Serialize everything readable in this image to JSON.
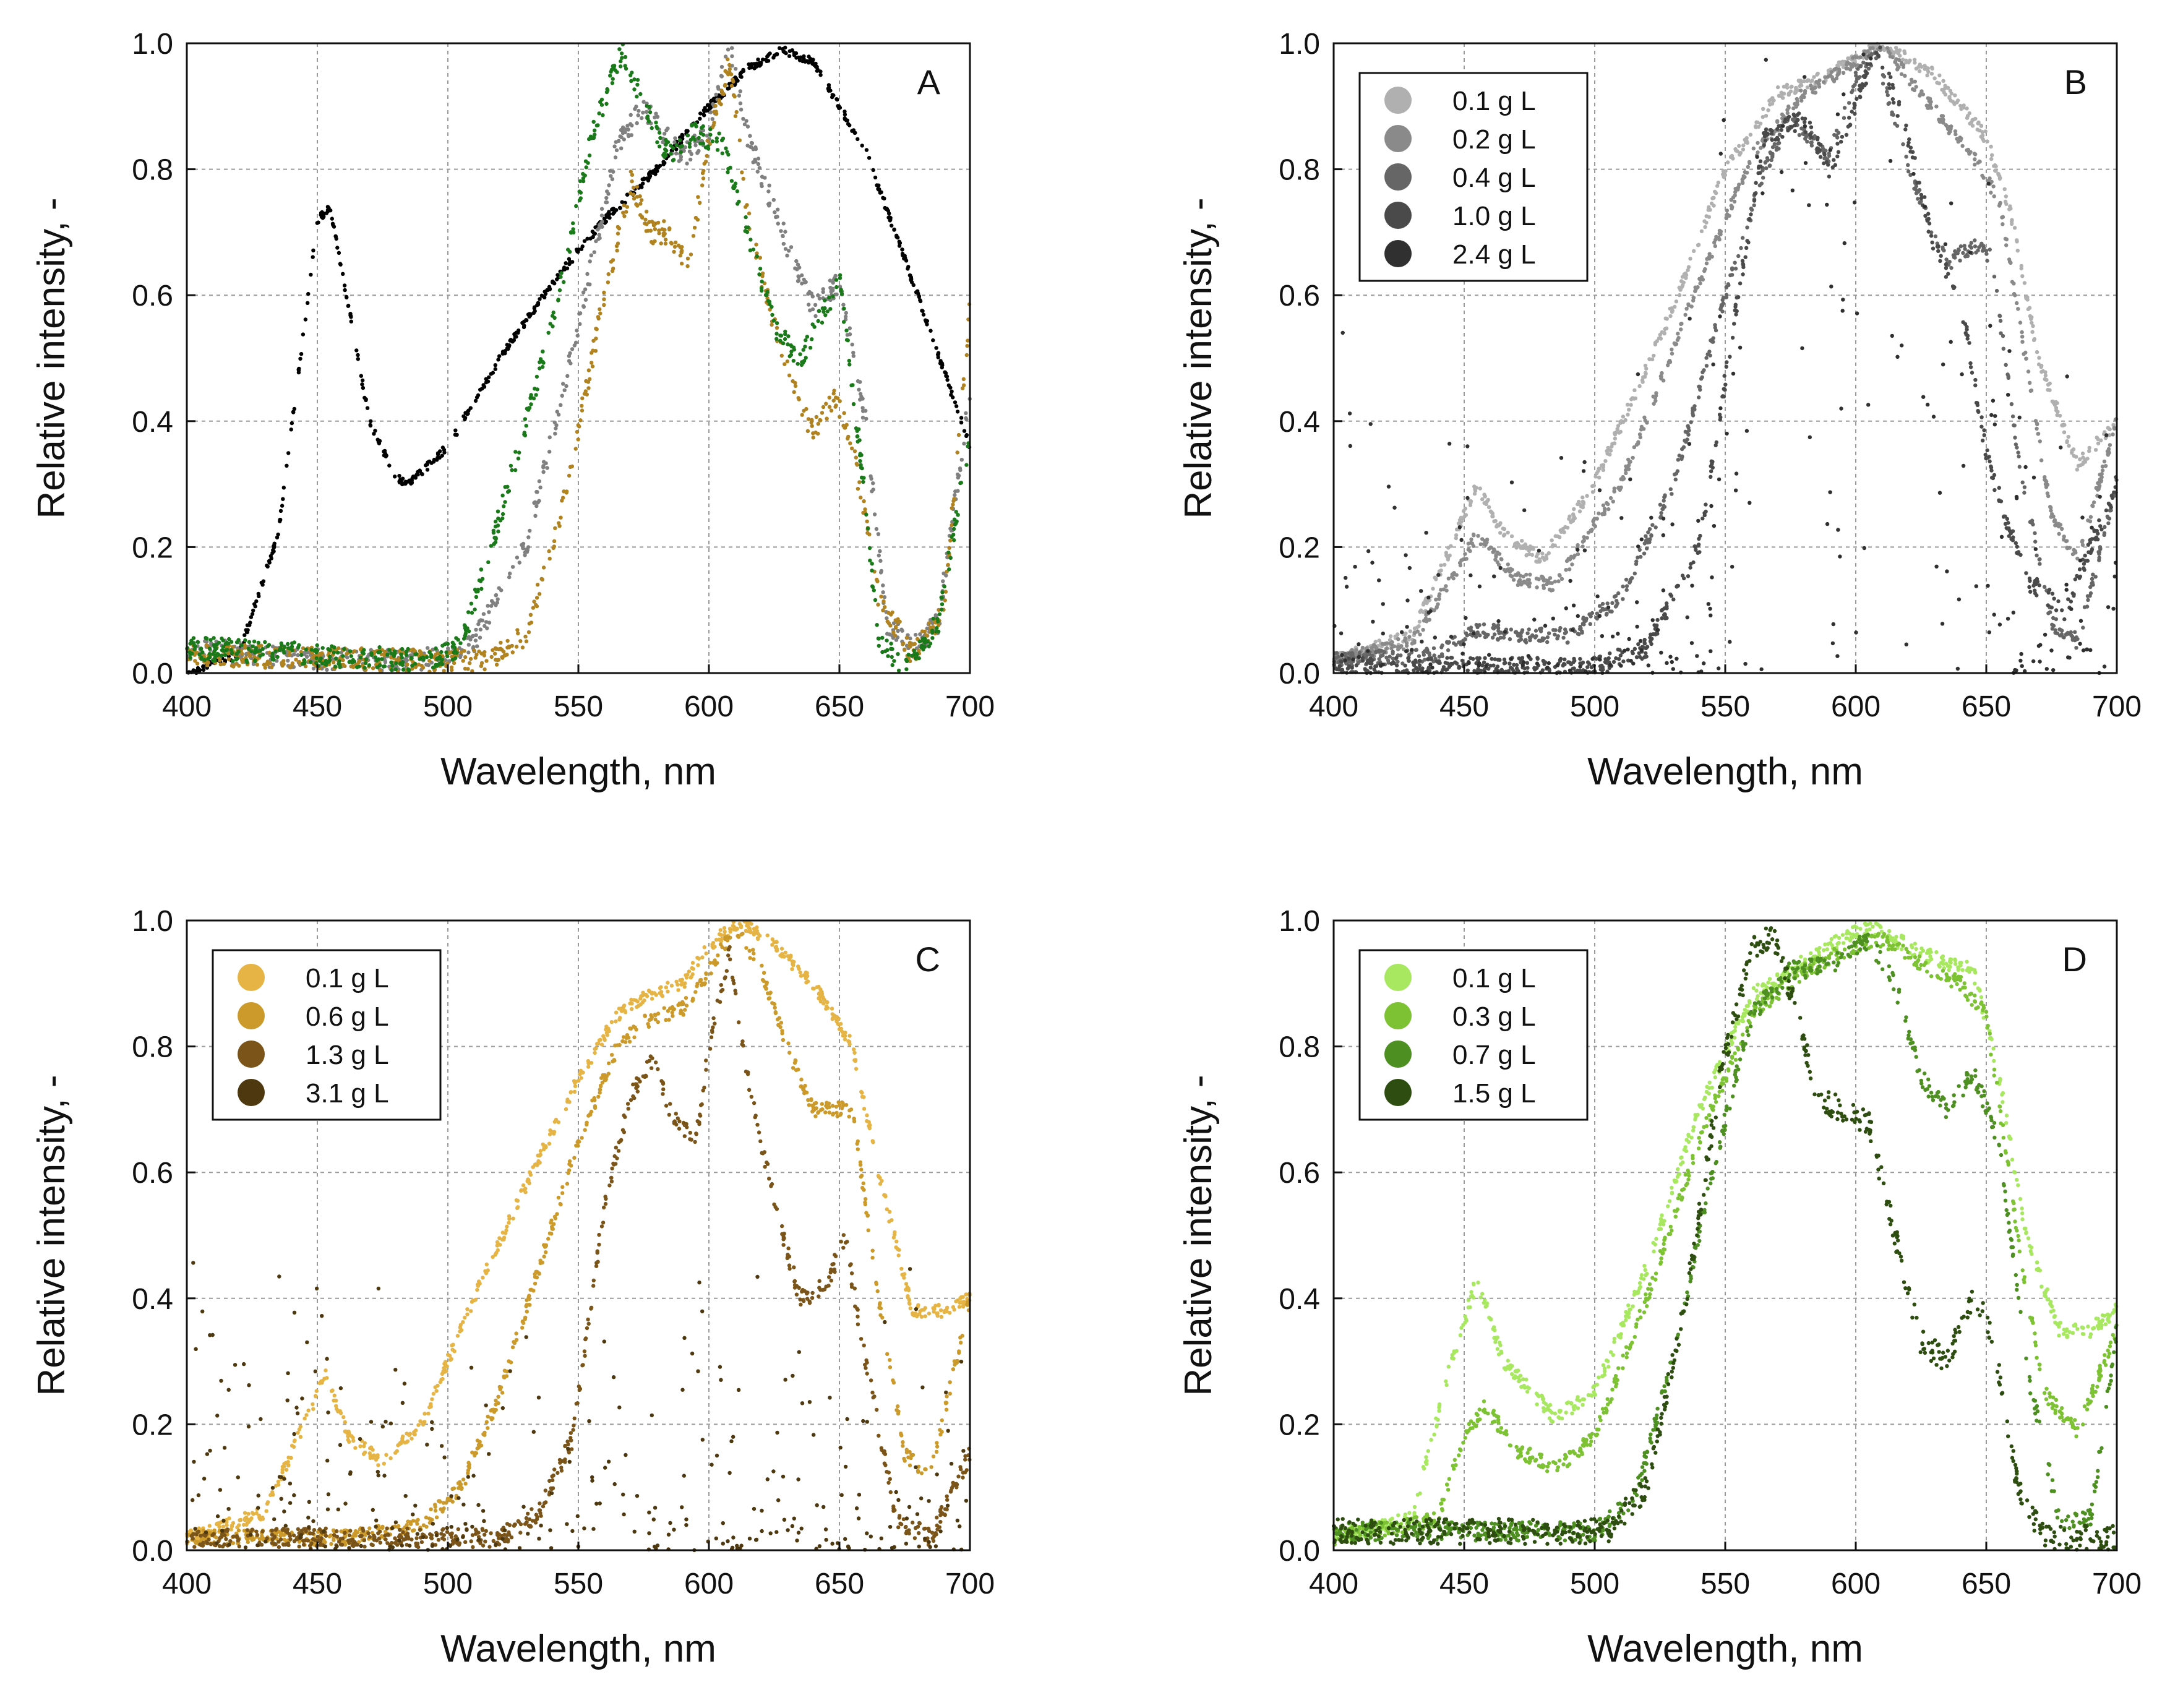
{
  "chart_data": [
    {
      "type": "scatter",
      "panel_label": "A",
      "xlabel": "Wavelength, nm",
      "ylabel": "Relative intensity, -",
      "xlim": [
        400,
        700
      ],
      "ylim": [
        0,
        1.0
      ],
      "xticks": [
        "400",
        "450",
        "500",
        "550",
        "600",
        "650",
        "700"
      ],
      "yticks": [
        "0.0",
        "0.2",
        "0.4",
        "0.6",
        "0.8",
        "1.0"
      ],
      "grid": true,
      "legend": null,
      "series": [
        {
          "color": "#000000",
          "noise": 0.006,
          "x": [
            400,
            420,
            435,
            445,
            450,
            455,
            462,
            470,
            480,
            485,
            500,
            520,
            540,
            560,
            580,
            600,
            615,
            628,
            640,
            660,
            680,
            700
          ],
          "y": [
            0.0,
            0.03,
            0.22,
            0.55,
            0.72,
            0.74,
            0.58,
            0.4,
            0.31,
            0.3,
            0.36,
            0.5,
            0.62,
            0.72,
            0.8,
            0.9,
            0.96,
            0.99,
            0.97,
            0.83,
            0.6,
            0.36
          ]
        },
        {
          "color": "#808080",
          "noise": 0.018,
          "x": [
            400,
            450,
            490,
            510,
            530,
            550,
            565,
            575,
            590,
            600,
            608,
            615,
            630,
            640,
            650,
            660,
            668,
            678,
            688,
            700
          ],
          "y": [
            0.04,
            0.02,
            0.02,
            0.05,
            0.2,
            0.55,
            0.84,
            0.9,
            0.82,
            0.86,
            1.0,
            0.85,
            0.68,
            0.58,
            0.62,
            0.4,
            0.08,
            0.04,
            0.08,
            0.45
          ]
        },
        {
          "color": "#b08320",
          "noise": 0.018,
          "x": [
            400,
            480,
            515,
            530,
            545,
            560,
            570,
            578,
            585,
            592,
            600,
            608,
            615,
            625,
            635,
            640,
            648,
            655,
            665,
            678,
            690,
            700
          ],
          "y": [
            0.03,
            0.02,
            0.02,
            0.06,
            0.28,
            0.6,
            0.78,
            0.7,
            0.7,
            0.64,
            0.85,
            0.97,
            0.72,
            0.55,
            0.43,
            0.38,
            0.44,
            0.36,
            0.12,
            0.03,
            0.1,
            0.58
          ]
        },
        {
          "color": "#1a7a1a",
          "noise": 0.018,
          "x": [
            400,
            490,
            505,
            520,
            540,
            555,
            567,
            575,
            585,
            595,
            605,
            615,
            625,
            635,
            645,
            650,
            658,
            665,
            675,
            688,
            700
          ],
          "y": [
            0.04,
            0.02,
            0.04,
            0.25,
            0.55,
            0.85,
            0.99,
            0.9,
            0.82,
            0.86,
            0.84,
            0.7,
            0.55,
            0.5,
            0.58,
            0.63,
            0.35,
            0.05,
            0.01,
            0.08,
            0.38
          ]
        }
      ]
    },
    {
      "type": "scatter",
      "panel_label": "B",
      "xlabel": "Wavelength, nm",
      "ylabel": "Relative intensity, -",
      "xlim": [
        400,
        700
      ],
      "ylim": [
        0,
        1.0
      ],
      "xticks": [
        "400",
        "450",
        "500",
        "550",
        "600",
        "650",
        "700"
      ],
      "yticks": [
        "0.0",
        "0.2",
        "0.4",
        "0.6",
        "0.8",
        "1.0"
      ],
      "grid": true,
      "legend": "top-left",
      "series": [
        {
          "name": "0.1 g L",
          "color": "#b0b0b0",
          "noise": 0.01,
          "x": [
            400,
            430,
            445,
            455,
            465,
            480,
            500,
            530,
            550,
            570,
            590,
            600,
            610,
            630,
            650,
            660,
            670,
            685,
            700
          ],
          "y": [
            0.02,
            0.06,
            0.2,
            0.3,
            0.22,
            0.18,
            0.3,
            0.58,
            0.8,
            0.92,
            0.95,
            0.98,
            1.0,
            0.95,
            0.85,
            0.72,
            0.5,
            0.33,
            0.4
          ]
        },
        {
          "name": "0.2 g L",
          "color": "#8a8a8a",
          "noise": 0.01,
          "x": [
            400,
            430,
            445,
            455,
            470,
            485,
            510,
            540,
            560,
            580,
            600,
            610,
            625,
            645,
            655,
            665,
            675,
            685,
            700
          ],
          "y": [
            0.02,
            0.05,
            0.15,
            0.22,
            0.15,
            0.14,
            0.3,
            0.62,
            0.82,
            0.92,
            0.97,
            1.0,
            0.92,
            0.82,
            0.75,
            0.5,
            0.25,
            0.18,
            0.4
          ]
        },
        {
          "name": "0.4 g L",
          "color": "#666666",
          "noise": 0.012,
          "x": [
            400,
            440,
            455,
            470,
            490,
            510,
            530,
            550,
            565,
            575,
            590,
            600,
            608,
            620,
            635,
            645,
            652,
            662,
            675,
            685,
            700
          ],
          "y": [
            0.02,
            0.03,
            0.07,
            0.06,
            0.06,
            0.12,
            0.3,
            0.6,
            0.8,
            0.88,
            0.82,
            0.95,
            0.98,
            0.8,
            0.65,
            0.68,
            0.66,
            0.35,
            0.08,
            0.05,
            0.3
          ]
        },
        {
          "name": "1.0 g L",
          "color": "#4a4a4a",
          "noise": 0.015,
          "x": [
            400,
            500,
            520,
            540,
            555,
            565,
            580,
            590,
            600,
            608,
            620,
            630,
            640,
            650,
            655,
            665,
            680,
            700
          ],
          "y": [
            0.01,
            0.01,
            0.04,
            0.2,
            0.6,
            0.85,
            0.88,
            0.8,
            0.9,
            1.0,
            0.85,
            0.68,
            0.6,
            0.35,
            0.28,
            0.15,
            0.1,
            0.3
          ]
        },
        {
          "name": "2.4 g L",
          "color": "#303030",
          "noise": 0.2,
          "x": [
            400,
            540,
            555,
            565,
            575,
            590,
            600,
            610,
            620,
            635,
            650,
            665,
            680,
            700
          ],
          "y": [
            0.1,
            0.1,
            0.45,
            0.8,
            0.9,
            0.6,
            0.65,
            0.95,
            0.6,
            0.3,
            0.25,
            0.1,
            0.05,
            0.3
          ]
        }
      ]
    },
    {
      "type": "scatter",
      "panel_label": "C",
      "xlabel": "Wavelength, nm",
      "ylabel": "Relative intensity, -",
      "xlim": [
        400,
        700
      ],
      "ylim": [
        0,
        1.0
      ],
      "xticks": [
        "400",
        "450",
        "500",
        "550",
        "600",
        "650",
        "700"
      ],
      "yticks": [
        "0.0",
        "0.2",
        "0.4",
        "0.6",
        "0.8",
        "1.0"
      ],
      "grid": true,
      "legend": "top-left",
      "series": [
        {
          "name": "0.1 g L",
          "color": "#e6b445",
          "noise": 0.01,
          "x": [
            400,
            430,
            445,
            453,
            462,
            475,
            490,
            510,
            530,
            550,
            565,
            575,
            590,
            600,
            612,
            625,
            640,
            655,
            665,
            678,
            690,
            700
          ],
          "y": [
            0.02,
            0.06,
            0.2,
            0.28,
            0.18,
            0.14,
            0.2,
            0.4,
            0.58,
            0.75,
            0.85,
            0.88,
            0.9,
            0.96,
            1.0,
            0.96,
            0.9,
            0.8,
            0.6,
            0.38,
            0.38,
            0.4
          ]
        },
        {
          "name": "0.6 g L",
          "color": "#cc9a2a",
          "noise": 0.012,
          "x": [
            400,
            460,
            490,
            505,
            520,
            535,
            550,
            565,
            575,
            590,
            600,
            610,
            620,
            630,
            640,
            655,
            665,
            675,
            685,
            700
          ],
          "y": [
            0.02,
            0.02,
            0.04,
            0.1,
            0.25,
            0.45,
            0.65,
            0.8,
            0.84,
            0.86,
            0.92,
            0.99,
            0.92,
            0.8,
            0.7,
            0.7,
            0.4,
            0.15,
            0.12,
            0.4
          ]
        },
        {
          "name": "1.3 g L",
          "color": "#7a5418",
          "noise": 0.015,
          "x": [
            400,
            520,
            535,
            548,
            560,
            570,
            578,
            585,
            595,
            600,
            608,
            615,
            625,
            635,
            645,
            652,
            660,
            672,
            685,
            700
          ],
          "y": [
            0.02,
            0.02,
            0.06,
            0.18,
            0.55,
            0.72,
            0.78,
            0.7,
            0.65,
            0.8,
            0.95,
            0.75,
            0.55,
            0.4,
            0.42,
            0.5,
            0.3,
            0.05,
            0.02,
            0.15
          ]
        },
        {
          "name": "3.1 g L",
          "color": "#4e3810",
          "noise": 0.12,
          "x": [
            400,
            450,
            500,
            550,
            600,
            650,
            700
          ],
          "y": [
            0.15,
            0.12,
            0.1,
            0.1,
            0.1,
            0.1,
            0.1
          ]
        }
      ]
    },
    {
      "type": "scatter",
      "panel_label": "D",
      "xlabel": "Wavelength, nm",
      "ylabel": "Relative intensity, -",
      "xlim": [
        400,
        700
      ],
      "ylim": [
        0,
        1.0
      ],
      "xticks": [
        "400",
        "450",
        "500",
        "550",
        "600",
        "650",
        "700"
      ],
      "yticks": [
        "0.0",
        "0.2",
        "0.4",
        "0.6",
        "0.8",
        "1.0"
      ],
      "grid": true,
      "legend": "top-left",
      "series": [
        {
          "name": "0.1 g L",
          "color": "#a8e860",
          "noise": 0.012,
          "x": [
            400,
            430,
            445,
            455,
            465,
            485,
            500,
            520,
            540,
            560,
            575,
            590,
            605,
            615,
            630,
            645,
            655,
            665,
            678,
            690,
            700
          ],
          "y": [
            0.02,
            0.05,
            0.3,
            0.43,
            0.3,
            0.21,
            0.25,
            0.45,
            0.7,
            0.88,
            0.92,
            0.96,
            0.99,
            0.97,
            0.94,
            0.92,
            0.75,
            0.5,
            0.35,
            0.35,
            0.38
          ]
        },
        {
          "name": "0.3 g L",
          "color": "#7cc232",
          "noise": 0.012,
          "x": [
            400,
            440,
            450,
            458,
            470,
            485,
            500,
            520,
            540,
            560,
            580,
            600,
            610,
            625,
            640,
            650,
            662,
            672,
            685,
            700
          ],
          "y": [
            0.02,
            0.05,
            0.18,
            0.23,
            0.16,
            0.13,
            0.18,
            0.4,
            0.65,
            0.85,
            0.92,
            0.96,
            0.97,
            0.93,
            0.9,
            0.85,
            0.5,
            0.25,
            0.19,
            0.35
          ]
        },
        {
          "name": "0.7 g L",
          "color": "#4e8f22",
          "noise": 0.015,
          "x": [
            400,
            500,
            515,
            530,
            545,
            560,
            575,
            590,
            605,
            615,
            625,
            635,
            645,
            655,
            665,
            678,
            690,
            700
          ],
          "y": [
            0.03,
            0.03,
            0.08,
            0.3,
            0.6,
            0.85,
            0.92,
            0.93,
            0.97,
            0.9,
            0.75,
            0.7,
            0.76,
            0.65,
            0.3,
            0.05,
            0.05,
            0.35
          ]
        },
        {
          "name": "1.5 g L",
          "color": "#2e4d10",
          "noise": 0.02,
          "x": [
            400,
            505,
            520,
            535,
            548,
            560,
            568,
            578,
            585,
            595,
            605,
            615,
            625,
            635,
            645,
            652,
            662,
            672,
            685,
            700
          ],
          "y": [
            0.03,
            0.03,
            0.1,
            0.4,
            0.75,
            0.95,
            0.98,
            0.85,
            0.72,
            0.7,
            0.68,
            0.5,
            0.33,
            0.3,
            0.4,
            0.35,
            0.1,
            0.02,
            0.02,
            0.02
          ]
        }
      ]
    }
  ]
}
